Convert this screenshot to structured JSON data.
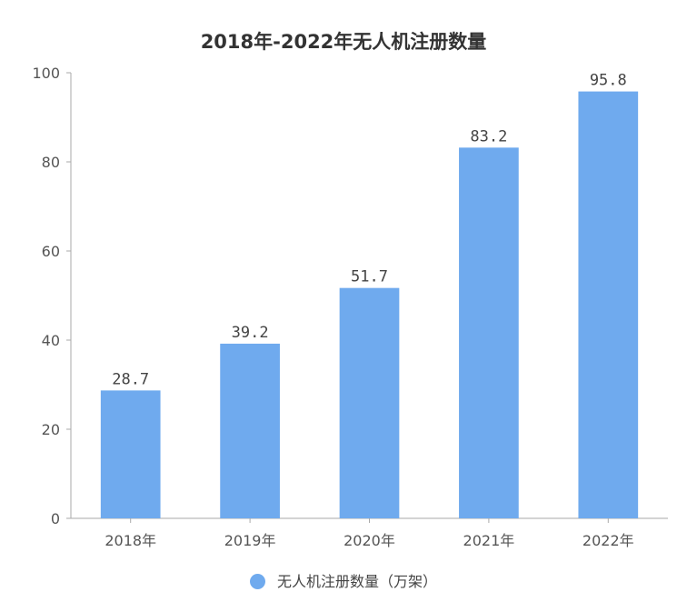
{
  "chart_data": {
    "type": "bar",
    "title": "2018年-2022年无人机注册数量",
    "categories": [
      "2018年",
      "2019年",
      "2020年",
      "2021年",
      "2022年"
    ],
    "series": [
      {
        "name": "无人机注册数量（万架）",
        "values": [
          28.7,
          39.2,
          51.7,
          83.2,
          95.8
        ]
      }
    ],
    "data_labels": [
      "28.7",
      "39.2",
      "51.7",
      "83.2",
      "95.8"
    ],
    "xlabel": "",
    "ylabel": "",
    "ylim": [
      0,
      100
    ],
    "yticks": [
      0,
      20,
      40,
      60,
      80,
      100
    ],
    "grid": false,
    "legend_position": "bottom",
    "colors": {
      "bar": "#6faaee",
      "axis": "#aaaaaa"
    }
  }
}
